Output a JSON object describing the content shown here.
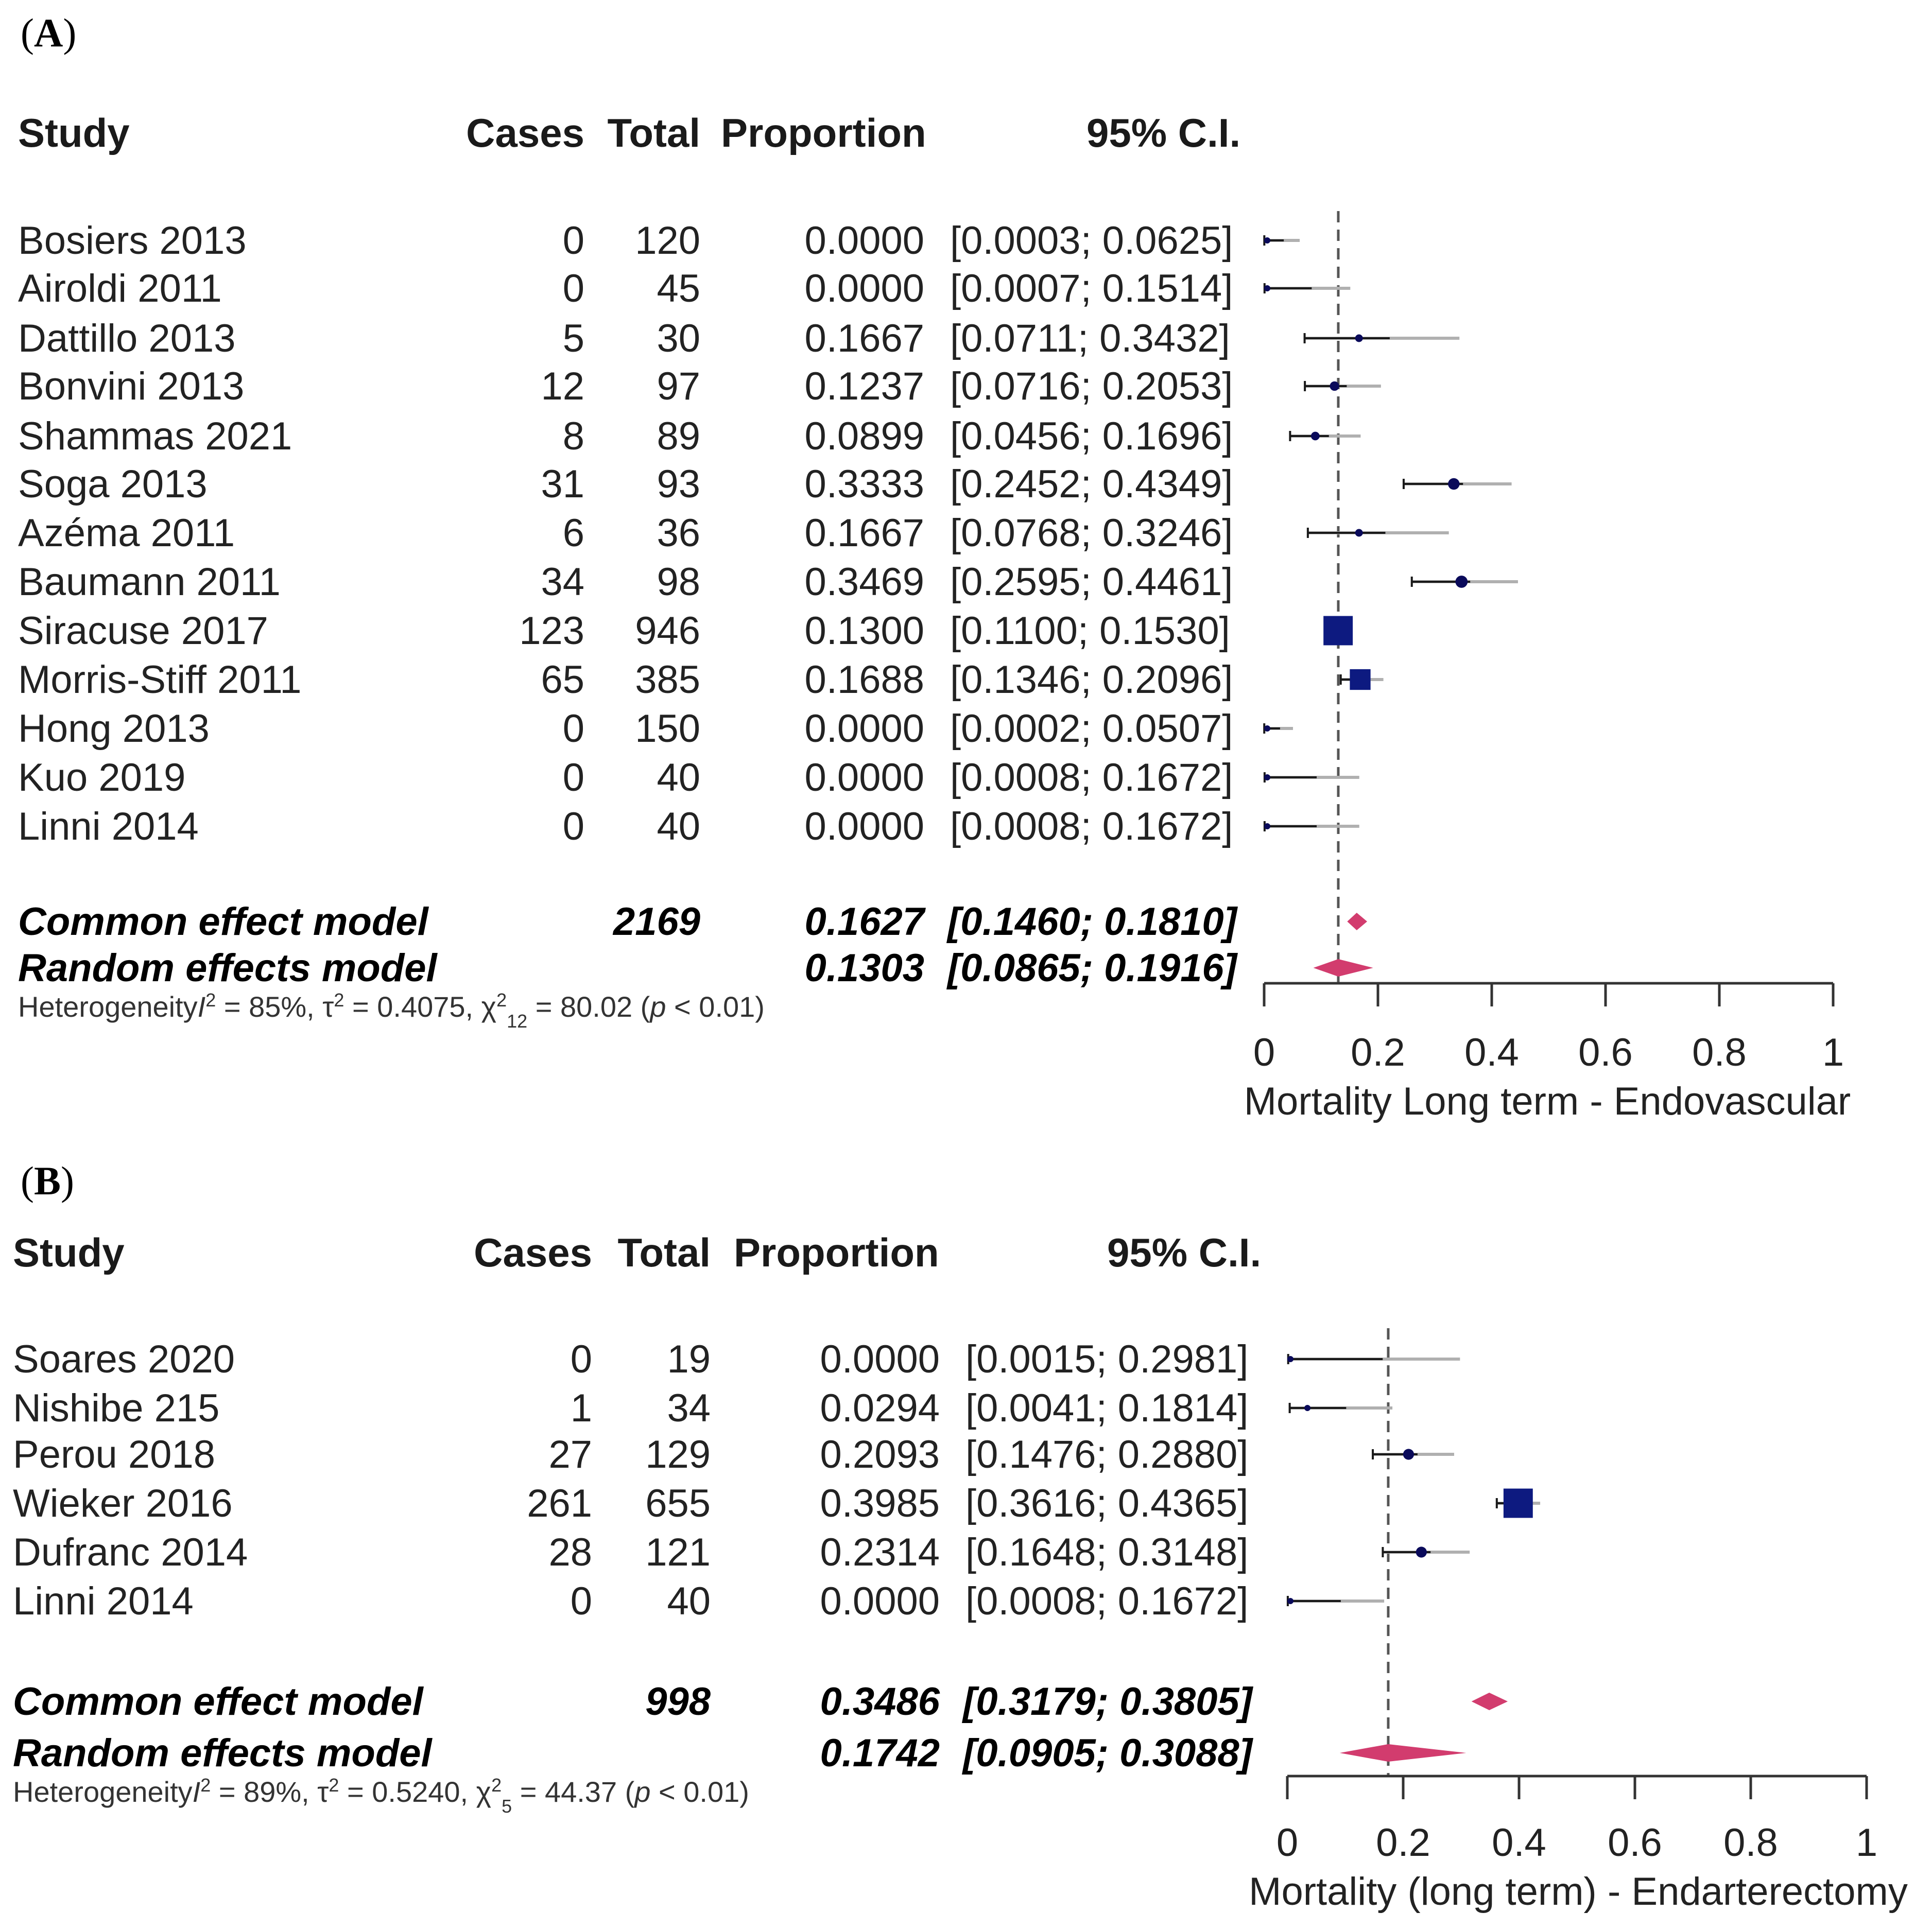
{
  "chart_data": [
    {
      "type": "forest",
      "panel": "A",
      "panel_label": "A",
      "headers": {
        "study": "Study",
        "cases": "Cases",
        "total": "Total",
        "proportion": "Proportion",
        "ci": "95% C.I."
      },
      "studies": [
        {
          "study": "Bosiers 2013",
          "cases": "0",
          "total": "120",
          "proportion": "0.0000",
          "ci": "[0.0003; 0.0625]",
          "est": 0.0,
          "lo": 0.0003,
          "hi": 0.0625,
          "weight": 2
        },
        {
          "study": "Airoldi 2011",
          "cases": "0",
          "total": "45",
          "proportion": "0.0000",
          "ci": "[0.0007; 0.1514]",
          "est": 0.0,
          "lo": 0.0007,
          "hi": 0.1514,
          "weight": 2
        },
        {
          "study": "Dattillo 2013",
          "cases": "5",
          "total": "30",
          "proportion": "0.1667",
          "ci": "[0.0711; 0.3432]",
          "est": 0.1667,
          "lo": 0.0711,
          "hi": 0.3432,
          "weight": 4
        },
        {
          "study": "Bonvini 2013",
          "cases": "12",
          "total": "97",
          "proportion": "0.1237",
          "ci": "[0.0716; 0.2053]",
          "est": 0.1237,
          "lo": 0.0716,
          "hi": 0.2053,
          "weight": 6
        },
        {
          "study": "Shammas 2021",
          "cases": "8",
          "total": "89",
          "proportion": "0.0899",
          "ci": "[0.0456; 0.1696]",
          "est": 0.0899,
          "lo": 0.0456,
          "hi": 0.1696,
          "weight": 5
        },
        {
          "study": "Soga 2013",
          "cases": "31",
          "total": "93",
          "proportion": "0.3333",
          "ci": "[0.2452; 0.4349]",
          "est": 0.3333,
          "lo": 0.2452,
          "hi": 0.4349,
          "weight": 9
        },
        {
          "study": "Azéma 2011",
          "cases": "6",
          "total": "36",
          "proportion": "0.1667",
          "ci": "[0.0768; 0.3246]",
          "est": 0.1667,
          "lo": 0.0768,
          "hi": 0.3246,
          "weight": 4
        },
        {
          "study": "Baumann 2011",
          "cases": "34",
          "total": "98",
          "proportion": "0.3469",
          "ci": "[0.2595; 0.4461]",
          "est": 0.3469,
          "lo": 0.2595,
          "hi": 0.4461,
          "weight": 10
        },
        {
          "study": "Siracuse 2017",
          "cases": "123",
          "total": "946",
          "proportion": "0.1300",
          "ci": "[0.1100; 0.1530]",
          "est": 0.13,
          "lo": 0.11,
          "hi": 0.153,
          "weight": 40
        },
        {
          "study": "Morris-Stiff 2011",
          "cases": "65",
          "total": "385",
          "proportion": "0.1688",
          "ci": "[0.1346; 0.2096]",
          "est": 0.1688,
          "lo": 0.1346,
          "hi": 0.2096,
          "weight": 20
        },
        {
          "study": "Hong 2013",
          "cases": "0",
          "total": "150",
          "proportion": "0.0000",
          "ci": "[0.0002; 0.0507]",
          "est": 0.0,
          "lo": 0.0002,
          "hi": 0.0507,
          "weight": 2
        },
        {
          "study": "Kuo 2019",
          "cases": "0",
          "total": "40",
          "proportion": "0.0000",
          "ci": "[0.0008; 0.1672]",
          "est": 0.0,
          "lo": 0.0008,
          "hi": 0.1672,
          "weight": 2
        },
        {
          "study": "Linni 2014",
          "cases": "0",
          "total": "40",
          "proportion": "0.0000",
          "ci": "[0.0008; 0.1672]",
          "est": 0.0,
          "lo": 0.0008,
          "hi": 0.1672,
          "weight": 2
        }
      ],
      "common": {
        "label": "Common effect model",
        "total": "2169",
        "proportion": "0.1627",
        "ci": "[0.1460; 0.1810]",
        "est": 0.1627,
        "lo": 0.146,
        "hi": 0.181
      },
      "random": {
        "label": "Random effects model",
        "total": "",
        "proportion": "0.1303",
        "ci": "[0.0865; 0.1916]",
        "est": 0.1303,
        "lo": 0.0865,
        "hi": 0.1916
      },
      "heterogeneity": {
        "prefix": "Heterogeneity",
        "i2": "= 85%,",
        "tau2": "= 0.4075,",
        "chi_sub": "12",
        "chi": "= 80.02 (",
        "p": "< 0.01)"
      },
      "xlim": [
        0,
        1
      ],
      "xticks": [
        0,
        0.2,
        0.4,
        0.6,
        0.8,
        1
      ],
      "xtick_labels": [
        "0",
        "0.2",
        "0.4",
        "0.6",
        "0.8",
        "1"
      ],
      "ref_line": 0.1303,
      "xlabel": "Mortality Long term - Endovascular"
    },
    {
      "type": "forest",
      "panel": "B",
      "panel_label": "B",
      "headers": {
        "study": "Study",
        "cases": "Cases",
        "total": "Total",
        "proportion": "Proportion",
        "ci": "95% C.I."
      },
      "studies": [
        {
          "study": "Soares 2020",
          "cases": "0",
          "total": "19",
          "proportion": "0.0000",
          "ci": "[0.0015; 0.2981]",
          "est": 0.0,
          "lo": 0.0015,
          "hi": 0.2981,
          "weight": 2
        },
        {
          "study": "Nishibe 215",
          "cases": "1",
          "total": "34",
          "proportion": "0.0294",
          "ci": "[0.0041; 0.1814]",
          "est": 0.0294,
          "lo": 0.0041,
          "hi": 0.1814,
          "weight": 2
        },
        {
          "study": "Perou 2018",
          "cases": "27",
          "total": "129",
          "proportion": "0.2093",
          "ci": "[0.1476; 0.2880]",
          "est": 0.2093,
          "lo": 0.1476,
          "hi": 0.288,
          "weight": 8
        },
        {
          "study": "Wieker 2016",
          "cases": "261",
          "total": "655",
          "proportion": "0.3985",
          "ci": "[0.3616; 0.4365]",
          "est": 0.3985,
          "lo": 0.3616,
          "hi": 0.4365,
          "weight": 40
        },
        {
          "study": "Dufranc 2014",
          "cases": "28",
          "total": "121",
          "proportion": "0.2314",
          "ci": "[0.1648; 0.3148]",
          "est": 0.2314,
          "lo": 0.1648,
          "hi": 0.3148,
          "weight": 8
        },
        {
          "study": "Linni 2014",
          "cases": "0",
          "total": "40",
          "proportion": "0.0000",
          "ci": "[0.0008; 0.1672]",
          "est": 0.0,
          "lo": 0.0008,
          "hi": 0.1672,
          "weight": 2
        }
      ],
      "common": {
        "label": "Common effect model",
        "total": "998",
        "proportion": "0.3486",
        "ci": "[0.3179; 0.3805]",
        "est": 0.3486,
        "lo": 0.3179,
        "hi": 0.3805
      },
      "random": {
        "label": "Random effects model",
        "total": "",
        "proportion": "0.1742",
        "ci": "[0.0905; 0.3088]",
        "est": 0.1742,
        "lo": 0.0905,
        "hi": 0.3088
      },
      "heterogeneity": {
        "prefix": "Heterogeneity",
        "i2": "= 89%,",
        "tau2": "= 0.5240,",
        "chi_sub": "5",
        "chi": "= 44.37 (",
        "p": "< 0.01)"
      },
      "xlim": [
        0,
        1
      ],
      "xticks": [
        0,
        0.2,
        0.4,
        0.6,
        0.8,
        1
      ],
      "xtick_labels": [
        "0",
        "0.2",
        "0.4",
        "0.6",
        "0.8",
        "1"
      ],
      "ref_line": 0.1742,
      "xlabel": "Mortality (long term) - Endarterectomy"
    }
  ],
  "colors": {
    "ci_dark": "#1a1a1a",
    "ci_grey": "#b0b0b0",
    "point": "#0a0a5a",
    "square": "#0d1a80",
    "diamond": "#d23c6e",
    "axis": "#333333",
    "refline": "#555555"
  }
}
